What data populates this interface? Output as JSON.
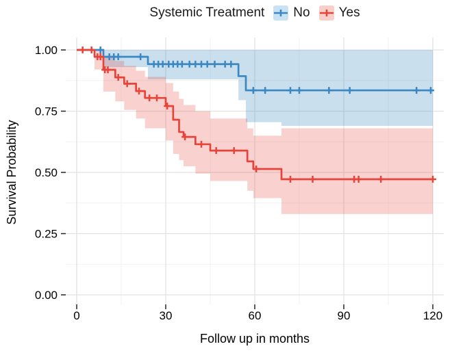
{
  "legend": {
    "title": "Systemic Treatment",
    "items": [
      {
        "label": "No",
        "color": "#3a87c2",
        "fill": "#c9e2f3"
      },
      {
        "label": "Yes",
        "color": "#e6443a",
        "fill": "#f8d0cb"
      }
    ]
  },
  "axes": {
    "x": {
      "tick_labels": [
        "0",
        "30",
        "60",
        "90",
        "120"
      ],
      "tick_values": [
        0,
        30,
        60,
        90,
        120
      ]
    },
    "y": {
      "tick_labels": [
        "0.00",
        "0.25",
        "0.50",
        "0.75",
        "1.00"
      ],
      "tick_values": [
        0,
        0.25,
        0.5,
        0.75,
        1
      ]
    }
  },
  "chart_data": {
    "type": "line",
    "subtype": "kaplan-meier-step-with-confidence-bands",
    "title": "Systemic Treatment",
    "xlabel": "Follow up in months",
    "ylabel": "Survival Probability",
    "xlim": [
      0,
      120
    ],
    "ylim": [
      0,
      1
    ],
    "grid": {
      "x_major": [
        0,
        30,
        60,
        90,
        120
      ],
      "x_minor": [
        15,
        45,
        75,
        105
      ],
      "y_major": [
        0,
        0.25,
        0.5,
        0.75,
        1
      ],
      "y_minor": [
        0.125,
        0.375,
        0.625,
        0.875
      ],
      "major_color": "#e2e2e2",
      "minor_color": "#f1f1f1"
    },
    "legend_position": "top",
    "series": [
      {
        "name": "No",
        "color": "#3a87c2",
        "band_color": "rgba(58,135,194,0.27)",
        "steps": [
          [
            0,
            1.0
          ],
          [
            9,
            0.972
          ],
          [
            24,
            0.942
          ],
          [
            54.5,
            0.893
          ],
          [
            57,
            0.835
          ],
          [
            120,
            0.835
          ]
        ],
        "censors": [
          [
            8,
            1.0
          ],
          [
            11,
            0.972
          ],
          [
            12.5,
            0.972
          ],
          [
            14,
            0.972
          ],
          [
            21.5,
            0.972
          ],
          [
            26,
            0.942
          ],
          [
            27.5,
            0.942
          ],
          [
            29,
            0.942
          ],
          [
            31,
            0.942
          ],
          [
            32.5,
            0.942
          ],
          [
            34,
            0.942
          ],
          [
            35.5,
            0.942
          ],
          [
            38,
            0.942
          ],
          [
            40,
            0.942
          ],
          [
            42,
            0.942
          ],
          [
            44,
            0.942
          ],
          [
            46.5,
            0.942
          ],
          [
            50,
            0.942
          ],
          [
            52,
            0.942
          ],
          [
            59.5,
            0.835
          ],
          [
            63.5,
            0.835
          ],
          [
            72,
            0.835
          ],
          [
            75,
            0.835
          ],
          [
            85,
            0.835
          ],
          [
            92,
            0.835
          ],
          [
            114.5,
            0.835
          ],
          [
            119.3,
            0.835
          ]
        ],
        "band": [
          [
            9,
            24,
            0.93,
            1.0
          ],
          [
            24,
            54.5,
            0.88,
            1.0
          ],
          [
            54.5,
            57,
            0.795,
            1.0
          ],
          [
            57,
            69,
            0.705,
            1.0
          ],
          [
            69,
            120,
            0.69,
            1.0
          ]
        ]
      },
      {
        "name": "Yes",
        "color": "#e6443a",
        "band_color": "rgba(230,68,58,0.24)",
        "steps": [
          [
            0,
            1.0
          ],
          [
            6,
            0.972
          ],
          [
            9,
            0.919
          ],
          [
            13,
            0.888
          ],
          [
            16,
            0.862
          ],
          [
            20,
            0.832
          ],
          [
            23,
            0.804
          ],
          [
            30,
            0.771
          ],
          [
            32.5,
            0.715
          ],
          [
            34.5,
            0.665
          ],
          [
            36,
            0.645
          ],
          [
            40,
            0.615
          ],
          [
            45,
            0.589
          ],
          [
            57.5,
            0.545
          ],
          [
            59.5,
            0.514
          ],
          [
            69,
            0.472
          ],
          [
            120,
            0.472
          ]
        ],
        "censors": [
          [
            2,
            1.0
          ],
          [
            5,
            1.0
          ],
          [
            7,
            0.972
          ],
          [
            8,
            0.972
          ],
          [
            9.5,
            0.919
          ],
          [
            10.5,
            0.919
          ],
          [
            14,
            0.888
          ],
          [
            17,
            0.862
          ],
          [
            21,
            0.832
          ],
          [
            24.5,
            0.804
          ],
          [
            27,
            0.804
          ],
          [
            30.5,
            0.771
          ],
          [
            36.5,
            0.645
          ],
          [
            42,
            0.615
          ],
          [
            47,
            0.589
          ],
          [
            53,
            0.589
          ],
          [
            60.5,
            0.514
          ],
          [
            72,
            0.472
          ],
          [
            79.5,
            0.472
          ],
          [
            93.5,
            0.472
          ],
          [
            95,
            0.472
          ],
          [
            102.5,
            0.472
          ],
          [
            120,
            0.472
          ]
        ],
        "band": [
          [
            6,
            9,
            0.92,
            1.0
          ],
          [
            9,
            13,
            0.83,
            0.975
          ],
          [
            13,
            16,
            0.79,
            0.955
          ],
          [
            16,
            20,
            0.755,
            0.935
          ],
          [
            20,
            23,
            0.72,
            0.915
          ],
          [
            23,
            30,
            0.68,
            0.89
          ],
          [
            30,
            32.5,
            0.63,
            0.865
          ],
          [
            32.5,
            34.5,
            0.575,
            0.83
          ],
          [
            34.5,
            36,
            0.55,
            0.8
          ],
          [
            36,
            40,
            0.525,
            0.775
          ],
          [
            40,
            45,
            0.495,
            0.75
          ],
          [
            45,
            57.5,
            0.465,
            0.72
          ],
          [
            57.5,
            59.5,
            0.425,
            0.68
          ],
          [
            59.5,
            69,
            0.395,
            0.65
          ],
          [
            69,
            120,
            0.33,
            0.68
          ]
        ]
      }
    ]
  }
}
